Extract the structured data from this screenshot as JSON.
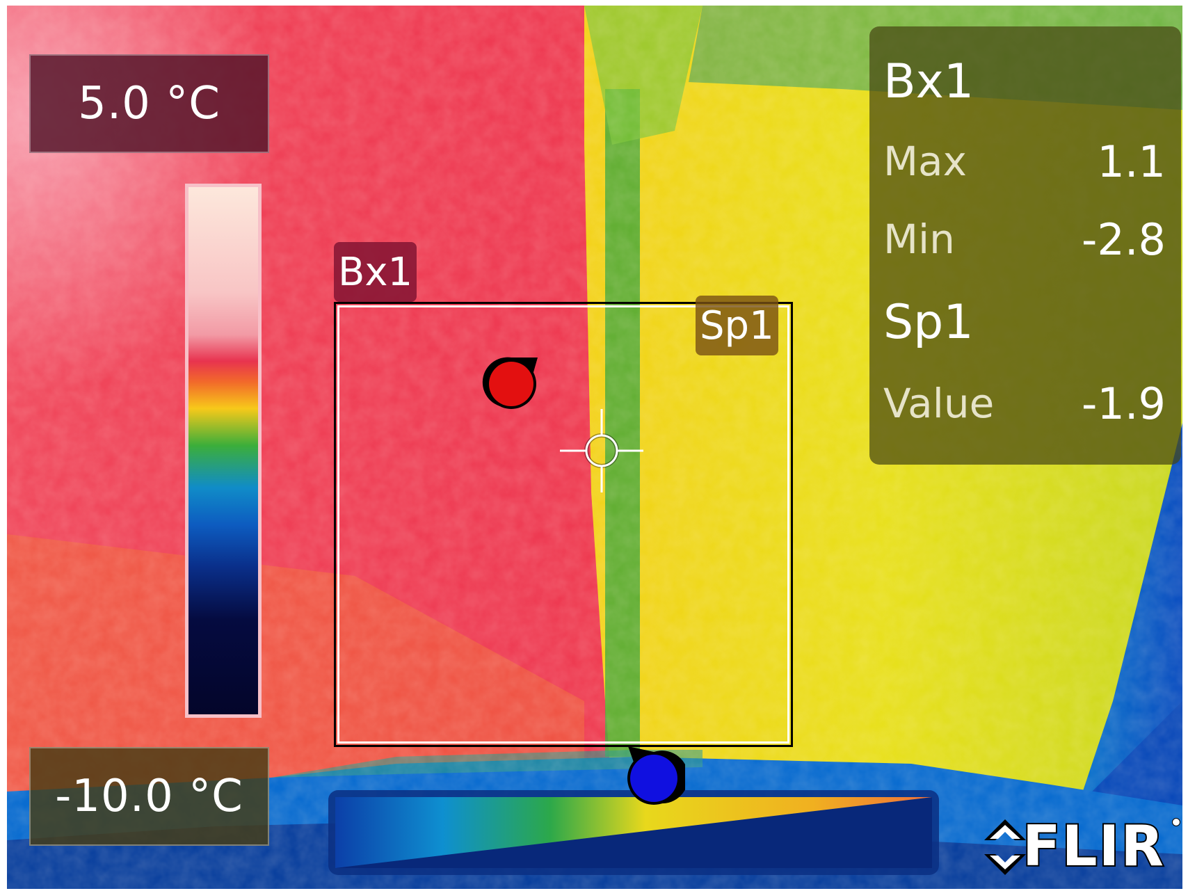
{
  "scale": {
    "max_label": "5.0 °C",
    "min_label": "-10.0 °C"
  },
  "roi": {
    "box_tag": "Bx1",
    "spot_tag": "Sp1"
  },
  "results": {
    "box_title": "Bx1",
    "max_key": "Max",
    "max_value": "1.1",
    "min_key": "Min",
    "min_value": "-2.8",
    "spot_title": "Sp1",
    "value_key": "Value",
    "value_value": "-1.9"
  },
  "brand": {
    "logo_text": "FLIR"
  },
  "icons": {
    "hot_marker": "hot-spot-marker-icon",
    "cold_marker": "cold-spot-marker-icon",
    "spot_meter": "crosshair-icon",
    "logo": "flir-logo-icon"
  },
  "colors": {
    "hot_marker": "#e31010",
    "cold_marker": "#1010e0",
    "box_bg": "#822032",
    "panel_bg": "#46461a"
  }
}
